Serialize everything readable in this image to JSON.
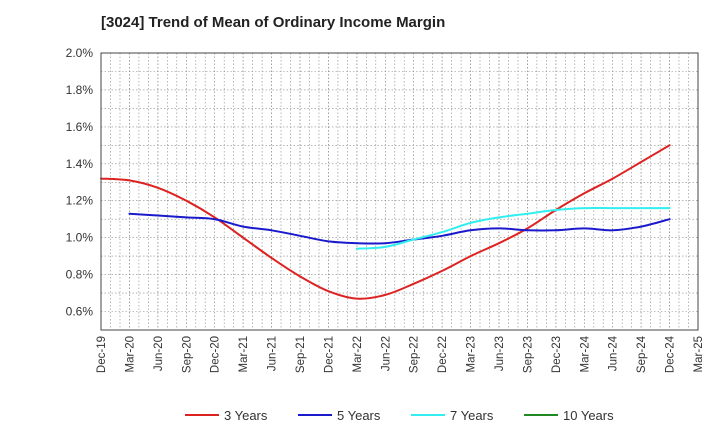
{
  "chart_data": {
    "type": "line",
    "title": "[3024]  Trend of Mean of Ordinary Income Margin",
    "xlabel": "",
    "ylabel": "",
    "categories": [
      "Dec-19",
      "Mar-20",
      "Jun-20",
      "Sep-20",
      "Dec-20",
      "Mar-21",
      "Jun-21",
      "Sep-21",
      "Dec-21",
      "Mar-22",
      "Jun-22",
      "Sep-22",
      "Dec-22",
      "Mar-23",
      "Jun-23",
      "Sep-23",
      "Dec-23",
      "Mar-24",
      "Jun-24",
      "Sep-24",
      "Dec-24",
      "Mar-25"
    ],
    "y_ticks": [
      "2.0%",
      "1.8%",
      "1.6%",
      "1.4%",
      "1.2%",
      "1.0%",
      "0.8%",
      "0.6%"
    ],
    "ylim": [
      0.5,
      2.0
    ],
    "grid": true,
    "legend_position": "bottom",
    "series": [
      {
        "name": "3 Years",
        "color": "#dd2222",
        "values": [
          1.32,
          1.31,
          1.27,
          1.2,
          1.11,
          1.0,
          0.89,
          0.79,
          0.71,
          0.67,
          0.69,
          0.75,
          0.82,
          0.9,
          0.97,
          1.05,
          1.15,
          1.24,
          1.32,
          1.41,
          1.5,
          null
        ]
      },
      {
        "name": "5 Years",
        "color": "#1a1acc",
        "values": [
          null,
          1.13,
          1.12,
          1.11,
          1.1,
          1.06,
          1.04,
          1.01,
          0.98,
          0.97,
          0.97,
          0.99,
          1.01,
          1.04,
          1.05,
          1.04,
          1.04,
          1.05,
          1.04,
          1.06,
          1.1,
          null
        ]
      },
      {
        "name": "7 Years",
        "color": "#33eeee",
        "values": [
          null,
          null,
          null,
          null,
          null,
          null,
          null,
          null,
          null,
          0.94,
          0.95,
          0.99,
          1.03,
          1.08,
          1.11,
          1.13,
          1.15,
          1.16,
          1.16,
          1.16,
          1.16,
          null
        ]
      },
      {
        "name": "10 Years",
        "color": "#228822",
        "values": [
          null,
          null,
          null,
          null,
          null,
          null,
          null,
          null,
          null,
          null,
          null,
          null,
          null,
          null,
          null,
          null,
          null,
          null,
          null,
          null,
          null,
          null
        ]
      }
    ]
  }
}
